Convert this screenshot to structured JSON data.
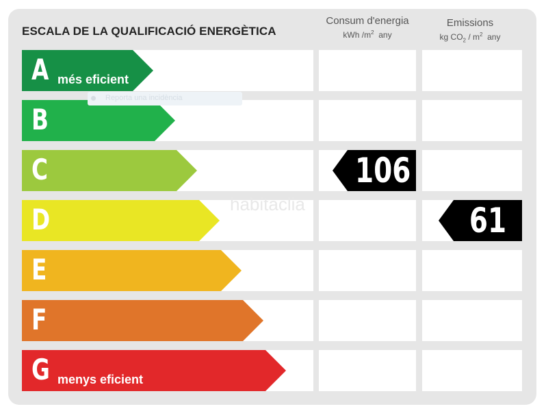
{
  "title": "ESCALA DE LA QUALIFICACIÓ ENERGÈTICA",
  "columns": {
    "consumption": {
      "line1": "Consum d'energia",
      "unit_a": "kWh /m",
      "unit_sup": "2",
      "unit_b": "any"
    },
    "emissions": {
      "line1": "Emissions",
      "unit_a": "kg CO",
      "unit_sub": "2",
      "unit_mid": " / m",
      "unit_sup": "2",
      "unit_b": "any"
    }
  },
  "ratings": [
    {
      "letter": "A",
      "label": "més eficient",
      "color": "#169046"
    },
    {
      "letter": "B",
      "label": "",
      "color": "#21b14b"
    },
    {
      "letter": "C",
      "label": "",
      "color": "#9cc93e"
    },
    {
      "letter": "D",
      "label": "",
      "color": "#e9e624"
    },
    {
      "letter": "E",
      "label": "",
      "color": "#f0b51f"
    },
    {
      "letter": "F",
      "label": "",
      "color": "#e0752a"
    },
    {
      "letter": "G",
      "label": "menys eficient",
      "color": "#e2282a"
    }
  ],
  "consumption_value": {
    "rating": "C",
    "value": "106"
  },
  "emissions_value": {
    "rating": "D",
    "value": "61"
  },
  "watermark": "habitaclia",
  "faint_overlay": "Reporta una incidència"
}
